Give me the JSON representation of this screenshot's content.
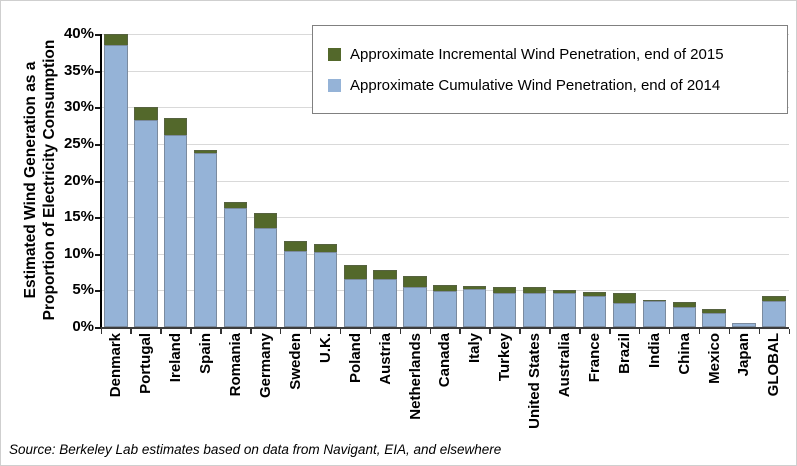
{
  "y_axis_title": {
    "line1": "Estimated Wind Generation as a",
    "line2": "Proportion of Electricity Consumption"
  },
  "source": "Source: Berkeley Lab estimates based on data from Navigant, EIA, and elsewhere",
  "legend": {
    "items": [
      {
        "label": "Approximate Incremental Wind Penetration, end of 2015",
        "color": "#53682B"
      },
      {
        "label": "Approximate Cumulative Wind Penetration, end of 2014",
        "color": "#95B3D7"
      }
    ]
  },
  "colors": {
    "incremental_green": "#53682B",
    "cumulative_blue": "#95B3D7",
    "gridline": "#D9D9D9",
    "axis": "#000000"
  },
  "chart_data": {
    "type": "bar",
    "stacked": true,
    "title": "",
    "xlabel": "",
    "ylabel": "Estimated Wind Generation as a Proportion of Electricity Consumption",
    "ylim": [
      0,
      40
    ],
    "grid": true,
    "legend_position": "top-right",
    "ytick_labels": [
      "0%",
      "5%",
      "10%",
      "15%",
      "20%",
      "25%",
      "30%",
      "35%",
      "40%"
    ],
    "ytick_values": [
      0,
      5,
      10,
      15,
      20,
      25,
      30,
      35,
      40
    ],
    "categories": [
      "Denmark",
      "Portugal",
      "Ireland",
      "Spain",
      "Romania",
      "Germany",
      "Sweden",
      "U.K.",
      "Poland",
      "Austria",
      "Netherlands",
      "Canada",
      "Italy",
      "Turkey",
      "United States",
      "Australia",
      "France",
      "Brazil",
      "India",
      "China",
      "Mexico",
      "Japan",
      "GLOBAL"
    ],
    "series": [
      {
        "name": "Approximate Cumulative Wind Penetration, end of 2014",
        "color": "#95B3D7",
        "values": [
          38.5,
          28.3,
          26.2,
          23.7,
          16.2,
          13.5,
          10.4,
          10.3,
          6.5,
          6.6,
          5.5,
          4.9,
          5.2,
          4.6,
          4.7,
          4.6,
          4.2,
          3.3,
          3.6,
          2.7,
          1.9,
          0.6,
          3.6
        ]
      },
      {
        "name": "Approximate Incremental Wind Penetration, end of 2015",
        "color": "#53682B",
        "values": [
          1.5,
          1.7,
          2.3,
          0.4,
          0.8,
          2.0,
          1.3,
          1.0,
          2.0,
          1.2,
          1.4,
          0.9,
          0.4,
          0.9,
          0.7,
          0.4,
          0.6,
          1.4,
          0.1,
          0.7,
          0.6,
          0.0,
          0.6
        ]
      }
    ],
    "totals_end_2015": [
      40.0,
      30.0,
      28.5,
      24.1,
      17.0,
      15.5,
      11.7,
      11.3,
      8.5,
      7.8,
      6.9,
      5.8,
      5.6,
      5.5,
      5.4,
      5.0,
      4.8,
      4.7,
      3.7,
      3.4,
      2.5,
      0.6,
      4.2
    ]
  }
}
